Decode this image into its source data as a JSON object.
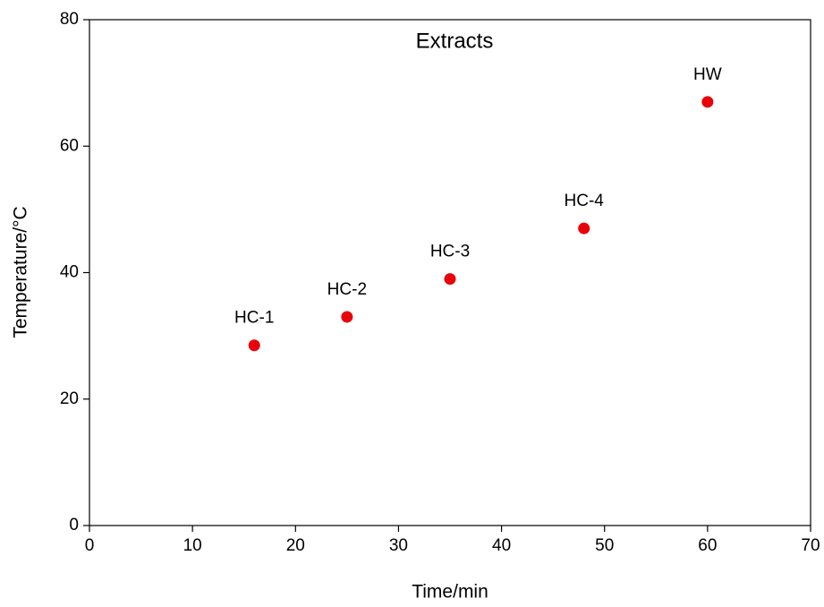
{
  "chart_data": {
    "type": "scatter",
    "title": "Extracts",
    "x_label": "Time/min",
    "y_label": "Temperature/°C",
    "x": [
      16,
      25,
      35,
      48,
      60
    ],
    "values": [
      28.5,
      33,
      39,
      47,
      67
    ],
    "point_labels": [
      "HC-1",
      "HC-2",
      "HC-3",
      "HC-4",
      "HW"
    ],
    "color": "#e8000b",
    "xlim": [
      0,
      70
    ],
    "ylim": [
      0,
      80
    ],
    "xticks": [
      0,
      10,
      20,
      30,
      40,
      50,
      60,
      70
    ],
    "yticks": [
      0,
      20,
      40,
      60,
      80
    ]
  }
}
